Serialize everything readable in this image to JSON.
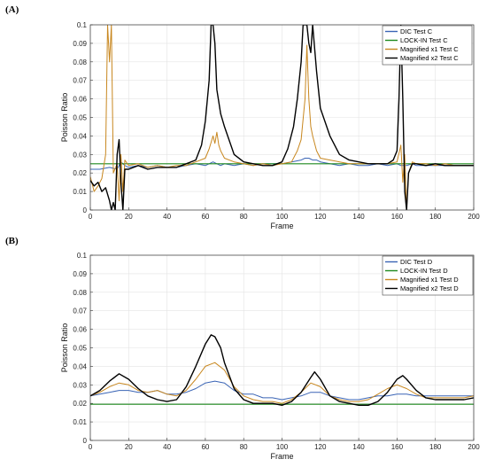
{
  "figure": {
    "panels": [
      {
        "label": "(A)"
      },
      {
        "label": "(B)"
      }
    ]
  },
  "colors": {
    "dic": "#3a64b5",
    "lockin": "#1f8a1f",
    "mag1": "#c8871f",
    "mag2": "#000000",
    "grid": "#e3e3e3"
  },
  "chart_data": [
    {
      "type": "line",
      "panel": "(A)",
      "xlabel": "Frame",
      "ylabel": "Poisson Ratio",
      "xlim": [
        0,
        200
      ],
      "ylim": [
        0,
        0.1
      ],
      "xticks": [
        0,
        20,
        40,
        60,
        80,
        100,
        120,
        140,
        160,
        180,
        200
      ],
      "yticks": [
        0,
        0.01,
        0.02,
        0.03,
        0.04,
        0.05,
        0.06,
        0.07,
        0.08,
        0.09,
        0.1
      ],
      "grid": true,
      "legend_position": "top-right",
      "series": [
        {
          "name": "DIC Test C",
          "color_key": "dic",
          "x": [
            0,
            5,
            10,
            14,
            16,
            18,
            20,
            25,
            30,
            35,
            40,
            45,
            50,
            55,
            60,
            62,
            64,
            66,
            68,
            70,
            75,
            80,
            85,
            90,
            95,
            100,
            105,
            110,
            112,
            114,
            116,
            118,
            120,
            125,
            130,
            135,
            140,
            145,
            150,
            155,
            160,
            162,
            165,
            168,
            170,
            175,
            180,
            185,
            190,
            195,
            200
          ],
          "y": [
            0.022,
            0.022,
            0.023,
            0.022,
            0.026,
            0.024,
            0.023,
            0.024,
            0.023,
            0.024,
            0.023,
            0.023,
            0.024,
            0.025,
            0.024,
            0.025,
            0.026,
            0.025,
            0.024,
            0.025,
            0.024,
            0.025,
            0.024,
            0.025,
            0.025,
            0.025,
            0.026,
            0.027,
            0.028,
            0.028,
            0.027,
            0.027,
            0.026,
            0.025,
            0.024,
            0.025,
            0.024,
            0.024,
            0.025,
            0.024,
            0.025,
            0.024,
            0.024,
            0.025,
            0.024,
            0.024,
            0.024,
            0.024,
            0.024,
            0.024,
            0.024
          ]
        },
        {
          "name": "LOCK-IN Test C",
          "color_key": "lockin",
          "x": [
            0,
            200
          ],
          "y": [
            0.025,
            0.025
          ]
        },
        {
          "name": "Magnified x1 Test C",
          "color_key": "mag1",
          "x": [
            0,
            2,
            4,
            6,
            8,
            9,
            10,
            11,
            12,
            14,
            15,
            16,
            17,
            18,
            20,
            25,
            30,
            35,
            40,
            45,
            50,
            55,
            60,
            62,
            64,
            65,
            66,
            67,
            68,
            70,
            75,
            80,
            85,
            90,
            95,
            100,
            105,
            108,
            110,
            112,
            113,
            114,
            115,
            116,
            118,
            120,
            125,
            130,
            135,
            140,
            145,
            150,
            155,
            160,
            162,
            163,
            164,
            165,
            166,
            168,
            170,
            175,
            180,
            185,
            190,
            195,
            200
          ],
          "y": [
            0.018,
            0.01,
            0.013,
            0.017,
            0.03,
            0.1,
            0.08,
            0.1,
            0.02,
            0.025,
            0.005,
            0.03,
            0.01,
            0.027,
            0.024,
            0.025,
            0.023,
            0.024,
            0.023,
            0.024,
            0.024,
            0.026,
            0.028,
            0.033,
            0.04,
            0.036,
            0.042,
            0.035,
            0.032,
            0.028,
            0.026,
            0.025,
            0.024,
            0.025,
            0.024,
            0.025,
            0.026,
            0.032,
            0.038,
            0.06,
            0.089,
            0.06,
            0.045,
            0.04,
            0.032,
            0.028,
            0.027,
            0.026,
            0.025,
            0.025,
            0.025,
            0.025,
            0.025,
            0.026,
            0.035,
            0.015,
            0.03,
            0.0,
            0.02,
            0.026,
            0.025,
            0.025,
            0.024,
            0.025,
            0.024,
            0.024,
            0.024
          ]
        },
        {
          "name": "Magnified x2 Test C",
          "color_key": "mag2",
          "x": [
            0,
            2,
            4,
            6,
            8,
            10,
            11,
            12,
            13,
            14,
            15,
            16,
            17,
            18,
            20,
            25,
            30,
            35,
            40,
            45,
            50,
            55,
            58,
            60,
            62,
            63,
            64,
            65,
            66,
            68,
            70,
            75,
            80,
            85,
            90,
            95,
            100,
            103,
            106,
            108,
            110,
            111,
            112,
            113,
            114,
            115,
            116,
            118,
            120,
            125,
            130,
            135,
            140,
            145,
            150,
            155,
            158,
            160,
            161,
            162,
            163,
            164,
            165,
            166,
            168,
            170,
            175,
            180,
            185,
            190,
            195,
            200
          ],
          "y": [
            0.016,
            0.013,
            0.015,
            0.01,
            0.012,
            0.005,
            0.0,
            0.004,
            0.0,
            0.03,
            0.038,
            0.015,
            0.0,
            0.022,
            0.022,
            0.024,
            0.022,
            0.023,
            0.023,
            0.023,
            0.025,
            0.027,
            0.035,
            0.048,
            0.07,
            0.1,
            0.1,
            0.09,
            0.065,
            0.052,
            0.045,
            0.03,
            0.026,
            0.025,
            0.024,
            0.024,
            0.026,
            0.033,
            0.045,
            0.06,
            0.08,
            0.1,
            0.1,
            0.1,
            0.09,
            0.085,
            0.1,
            0.075,
            0.055,
            0.04,
            0.03,
            0.027,
            0.026,
            0.025,
            0.025,
            0.025,
            0.027,
            0.032,
            0.06,
            0.1,
            0.06,
            0.01,
            0.0,
            0.02,
            0.025,
            0.025,
            0.024,
            0.025,
            0.024,
            0.024,
            0.024,
            0.024
          ]
        }
      ]
    },
    {
      "type": "line",
      "panel": "(B)",
      "xlabel": "Frame",
      "ylabel": "Poisson Ratio",
      "xlim": [
        0,
        200
      ],
      "ylim": [
        0,
        0.1
      ],
      "xticks": [
        0,
        20,
        40,
        60,
        80,
        100,
        120,
        140,
        160,
        180,
        200
      ],
      "yticks": [
        0,
        0.01,
        0.02,
        0.03,
        0.04,
        0.05,
        0.06,
        0.07,
        0.08,
        0.09,
        0.1
      ],
      "grid": true,
      "legend_position": "top-right",
      "series": [
        {
          "name": "DIC Test D",
          "color_key": "dic",
          "x": [
            0,
            5,
            10,
            15,
            20,
            25,
            30,
            35,
            40,
            45,
            50,
            55,
            60,
            65,
            70,
            75,
            80,
            85,
            90,
            95,
            100,
            105,
            110,
            115,
            120,
            125,
            130,
            135,
            140,
            145,
            150,
            155,
            160,
            165,
            170,
            175,
            180,
            185,
            190,
            195,
            200
          ],
          "y": [
            0.024,
            0.025,
            0.026,
            0.027,
            0.027,
            0.026,
            0.026,
            0.027,
            0.025,
            0.025,
            0.026,
            0.028,
            0.031,
            0.032,
            0.031,
            0.027,
            0.025,
            0.025,
            0.023,
            0.023,
            0.022,
            0.023,
            0.024,
            0.026,
            0.026,
            0.024,
            0.023,
            0.022,
            0.022,
            0.023,
            0.024,
            0.024,
            0.025,
            0.025,
            0.024,
            0.024,
            0.024,
            0.024,
            0.024,
            0.024,
            0.024
          ]
        },
        {
          "name": "LOCK-IN Test D",
          "color_key": "lockin",
          "x": [
            0,
            200
          ],
          "y": [
            0.0195,
            0.0195
          ]
        },
        {
          "name": "Magnified x1 Test D",
          "color_key": "mag1",
          "x": [
            0,
            5,
            10,
            15,
            20,
            25,
            30,
            35,
            40,
            45,
            50,
            55,
            60,
            65,
            70,
            75,
            80,
            85,
            90,
            95,
            100,
            105,
            110,
            115,
            120,
            125,
            130,
            135,
            140,
            145,
            150,
            155,
            160,
            165,
            170,
            175,
            180,
            185,
            190,
            195,
            200
          ],
          "y": [
            0.024,
            0.026,
            0.029,
            0.031,
            0.03,
            0.027,
            0.026,
            0.027,
            0.025,
            0.024,
            0.027,
            0.033,
            0.04,
            0.042,
            0.038,
            0.029,
            0.024,
            0.022,
            0.021,
            0.021,
            0.02,
            0.022,
            0.026,
            0.031,
            0.029,
            0.024,
            0.022,
            0.021,
            0.021,
            0.022,
            0.025,
            0.028,
            0.03,
            0.028,
            0.025,
            0.023,
            0.023,
            0.023,
            0.023,
            0.023,
            0.024
          ]
        },
        {
          "name": "Magnified x2 Test D",
          "color_key": "mag2",
          "x": [
            0,
            5,
            10,
            15,
            20,
            25,
            30,
            35,
            40,
            45,
            50,
            55,
            60,
            63,
            65,
            68,
            70,
            75,
            80,
            85,
            90,
            95,
            100,
            105,
            110,
            115,
            117,
            120,
            125,
            130,
            135,
            140,
            145,
            150,
            155,
            160,
            163,
            165,
            170,
            175,
            180,
            185,
            190,
            195,
            200
          ],
          "y": [
            0.024,
            0.027,
            0.032,
            0.036,
            0.033,
            0.028,
            0.024,
            0.022,
            0.021,
            0.022,
            0.029,
            0.04,
            0.052,
            0.057,
            0.056,
            0.05,
            0.042,
            0.028,
            0.022,
            0.02,
            0.02,
            0.02,
            0.019,
            0.021,
            0.026,
            0.034,
            0.037,
            0.033,
            0.024,
            0.021,
            0.02,
            0.019,
            0.019,
            0.021,
            0.026,
            0.033,
            0.035,
            0.033,
            0.027,
            0.023,
            0.022,
            0.022,
            0.022,
            0.022,
            0.023
          ]
        }
      ]
    }
  ]
}
